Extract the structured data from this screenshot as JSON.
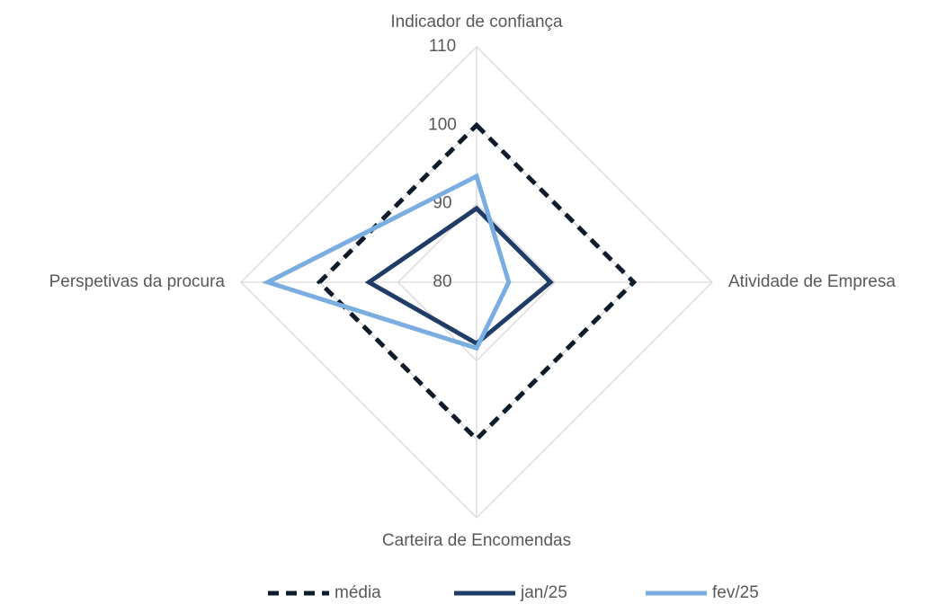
{
  "chart_data": {
    "type": "radar",
    "categories": [
      "Indicador de confiança",
      "Atividade de Empresa",
      "Carteira de Encomendas",
      "Perspetivas da procura"
    ],
    "ylim": [
      80,
      110
    ],
    "yticks": [
      80,
      90,
      100,
      110
    ],
    "grid": true,
    "legend": "bottom",
    "series": [
      {
        "name": "média",
        "color": "#0d1b2a",
        "dash": true,
        "values": [
          100,
          100,
          100,
          100
        ]
      },
      {
        "name": "jan/25",
        "color": "#1f3c66",
        "values": [
          89.4,
          89.4,
          87.8,
          93.7
        ]
      },
      {
        "name": "fev/25",
        "color": "#7aaee0",
        "values": [
          93.5,
          84.1,
          88.4,
          106.6
        ]
      }
    ]
  }
}
